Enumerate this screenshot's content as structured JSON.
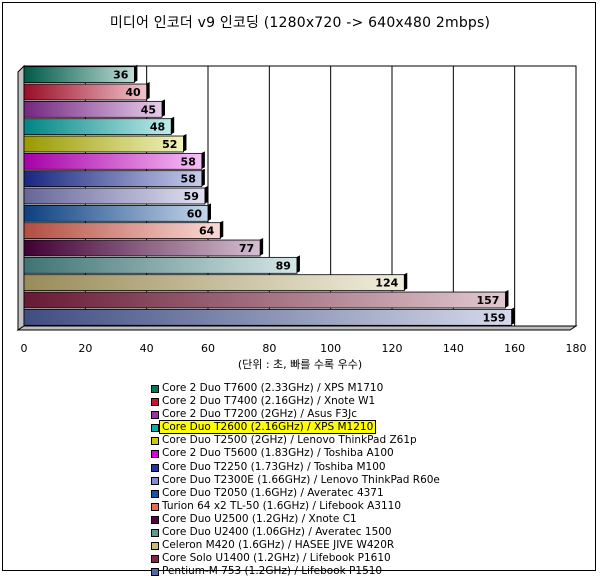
{
  "chart_data": {
    "type": "bar",
    "orientation": "horizontal",
    "title": "미디어 인코더 v9 인코딩 (1280x720 -> 640x480 2mbps)",
    "xlabel": "(단위 : 초, 빠를 수록 우수)",
    "ylabel": "",
    "xlim": [
      0,
      180
    ],
    "xticks": [
      "0",
      "20",
      "40",
      "60",
      "80",
      "100",
      "120",
      "140",
      "160",
      "180"
    ],
    "grid": "vertical",
    "legend_position": "bottom",
    "highlighted": "Core Duo T2600 (2.16GHz) / XPS M1210",
    "series": [
      {
        "name": "Core 2 Duo T7600 (2.33GHz) / XPS M1710",
        "value": 36,
        "color": "#007860"
      },
      {
        "name": "Core 2 Duo T7400 (2.16GHz) / Xnote W1",
        "value": 40,
        "color": "#cc1133"
      },
      {
        "name": "Core 2 Duo T7200 (2GHz) / Asus F3Jc",
        "value": 45,
        "color": "#9933aa"
      },
      {
        "name": "Core Duo T2600 (2.16GHz) / XPS M1210",
        "value": 48,
        "color": "#00b0b0"
      },
      {
        "name": "Core Duo T2500 (2GHz) / Lenovo ThinkPad Z61p",
        "value": 52,
        "color": "#cccc00"
      },
      {
        "name": "Core 2 Duo T5600 (1.83GHz) / Toshiba A100",
        "value": 58,
        "color": "#dd00dd"
      },
      {
        "name": "Core Duo T2250 (1.73GHz) / Toshiba M100",
        "value": 58,
        "color": "#2233aa"
      },
      {
        "name": "Core Duo T2300E (1.66GHz) / Lenovo ThinkPad R60e",
        "value": 59,
        "color": "#8888cc"
      },
      {
        "name": "Core Duo T2050 (1.6GHz) / Averatec 4371",
        "value": 60,
        "color": "#1155aa"
      },
      {
        "name": "Turion 64 x2 TL-50 (1.6GHz) / Lifebook A3110",
        "value": 64,
        "color": "#ee6655"
      },
      {
        "name": "Core Duo U2500 (1.2GHz) / Xnote C1",
        "value": 77,
        "color": "#550044"
      },
      {
        "name": "Core Duo U2400 (1.06GHz) / Averatec 1500",
        "value": 89,
        "color": "#559999"
      },
      {
        "name": "Celeron M420 (1.6GHz) / HASEE JIVE W420R",
        "value": 124,
        "color": "#ccbb77"
      },
      {
        "name": "Core Solo U1400 (1.2GHz) / Lifebook P1610",
        "value": 157,
        "color": "#882244"
      },
      {
        "name": "Pentium-M 753 (1.2GHz) / Lifebook P1510",
        "value": 159,
        "color": "#5566aa"
      }
    ]
  }
}
